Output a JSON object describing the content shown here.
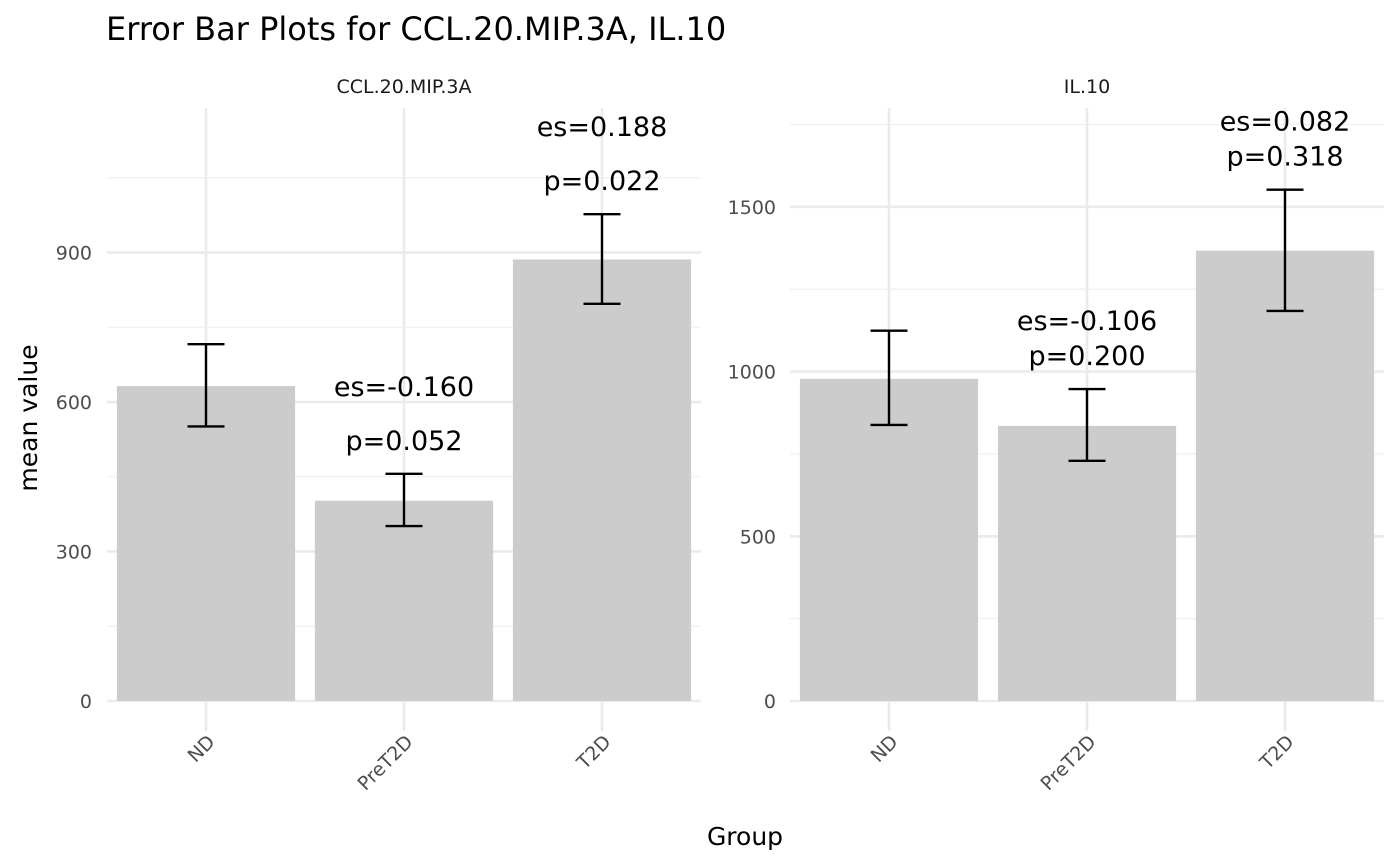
{
  "chart_data": {
    "type": "bar",
    "title": "Error Bar Plots for CCL.20.MIP.3A, IL.10",
    "xlabel": "Group",
    "ylabel": "mean value",
    "grid": true,
    "legend": "none",
    "categories": [
      "ND",
      "PreT2D",
      "T2D"
    ],
    "bar_color": "#cccccc",
    "error_bar_color": "#000000",
    "panels": [
      {
        "name": "CCL.20.MIP.3A",
        "ylim": [
          0,
          1190
        ],
        "yticks": [
          0,
          300,
          600,
          900
        ],
        "minor_yticks": [
          150,
          450,
          750,
          1050
        ],
        "values": [
          632,
          402,
          886
        ],
        "error_lower": [
          551,
          351,
          797
        ],
        "error_upper": [
          716,
          456,
          977
        ],
        "annotations": [
          null,
          {
            "es": "es=-0.160",
            "p": "p=0.052"
          },
          {
            "es": "es=0.188",
            "p": "p=0.022"
          }
        ]
      },
      {
        "name": "IL.10",
        "ylim": [
          0,
          1800
        ],
        "yticks": [
          0,
          500,
          1000,
          1500
        ],
        "minor_yticks": [
          250,
          750,
          1250,
          1750
        ],
        "values": [
          978,
          835,
          1367
        ],
        "error_lower": [
          838,
          729,
          1184
        ],
        "error_upper": [
          1124,
          947,
          1552
        ],
        "annotations": [
          null,
          {
            "es": "es=-0.106",
            "p": "p=0.200"
          },
          {
            "es": "es=0.082",
            "p": "p=0.318"
          }
        ]
      }
    ]
  }
}
